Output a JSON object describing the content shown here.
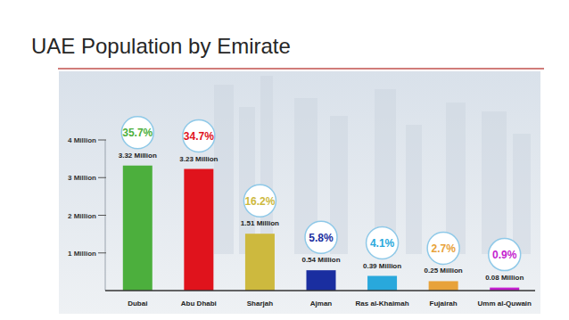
{
  "chart_data": {
    "type": "bar",
    "title": "UAE Population by Emirate",
    "categories": [
      "Dubai",
      "Abu Dhabi",
      "Sharjah",
      "Ajman",
      "Ras al-Khaimah",
      "Fujairah",
      "Umm al-Quwain"
    ],
    "values": [
      3.32,
      3.23,
      1.51,
      0.54,
      0.39,
      0.25,
      0.08
    ],
    "value_labels": [
      "3.32 Million",
      "3.23 Million",
      "1.51 Million",
      "0.54 Million",
      "0.39 Million",
      "0.25 Million",
      "0.08 Million"
    ],
    "percentages": [
      35.7,
      34.7,
      16.2,
      5.8,
      4.1,
      2.7,
      0.9
    ],
    "percentage_labels": [
      "35.7%",
      "34.7%",
      "16.2%",
      "5.8%",
      "4.1%",
      "2.7%",
      "0.9%"
    ],
    "colors": [
      "#4caf3d",
      "#e0131c",
      "#cdb93e",
      "#1a2ea0",
      "#29a8dc",
      "#e8a23a",
      "#c41fcf"
    ],
    "ylim": [
      0,
      4
    ],
    "yticks": [
      {
        "value": 1,
        "label": "1 Million"
      },
      {
        "value": 2,
        "label": "2 Million"
      },
      {
        "value": 3,
        "label": "3 Million"
      },
      {
        "value": 4,
        "label": "4 Million"
      }
    ],
    "grid": false,
    "data_labels": true
  }
}
